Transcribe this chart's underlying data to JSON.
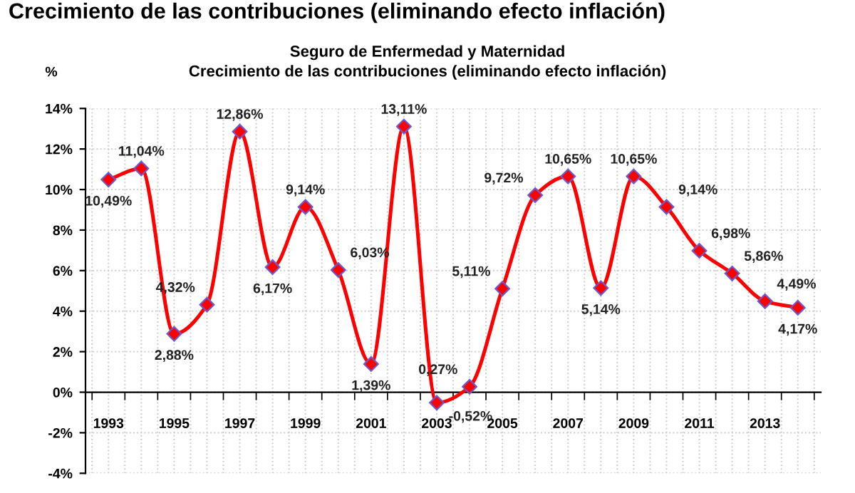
{
  "chart_data": {
    "type": "line",
    "title": "Seguro de Enfermedad y Maternidad",
    "subtitle": "Crecimiento de las contribuciones (eliminando efecto inflación)",
    "annotations": [
      "Crecimiento de las contribuciones (eliminando efecto inflación)"
    ],
    "ylabel": "%",
    "categories": [
      "1993",
      null,
      "1995",
      null,
      "1997",
      null,
      "1999",
      null,
      "2001",
      null,
      "2003",
      null,
      "2005",
      null,
      "2007",
      null,
      "2009",
      null,
      "2011",
      null,
      "2013",
      null
    ],
    "series": [
      {
        "color": "#ff0000",
        "values": [
          10.49,
          11.04,
          2.88,
          4.32,
          12.86,
          6.17,
          9.14,
          6.03,
          1.39,
          13.11,
          -0.52,
          0.27,
          5.11,
          9.72,
          10.65,
          5.14,
          10.65,
          9.14,
          6.98,
          5.86,
          4.49,
          4.17
        ],
        "value_labels": [
          "10,49%",
          "11,04%",
          "2,88%",
          "4,32%",
          "12,86%",
          "6,17%",
          "9,14%",
          "6,03%",
          "1,39%",
          "13,11%",
          "-0,52%",
          "0,27%",
          "5,11%",
          "9,72%",
          "10,65%",
          "5,14%",
          "10,65%",
          "9,14%",
          "6,98%",
          "5,86%",
          "4,49%",
          "4,17%"
        ]
      }
    ],
    "ylim": [
      -4,
      14
    ],
    "yticks": [
      {
        "value": -4,
        "label": "-4%"
      },
      {
        "value": -2,
        "label": "-2%"
      },
      {
        "value": 0,
        "label": "0%"
      },
      {
        "value": 2,
        "label": "2%"
      },
      {
        "value": 4,
        "label": "4%"
      },
      {
        "value": 6,
        "label": "6%"
      },
      {
        "value": 8,
        "label": "8%"
      },
      {
        "value": 10,
        "label": "10%"
      },
      {
        "value": 12,
        "label": "12%"
      },
      {
        "value": 14,
        "label": "14%"
      }
    ],
    "grid": true,
    "legend": false,
    "marker": "diamond",
    "line_style": "solid"
  }
}
